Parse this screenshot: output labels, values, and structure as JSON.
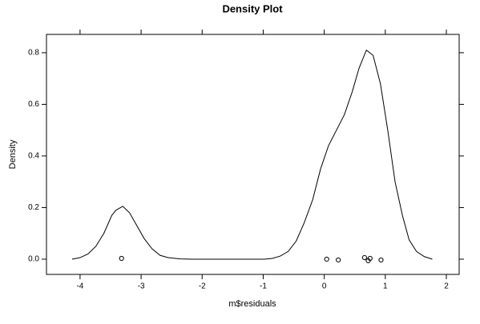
{
  "chart_data": {
    "type": "line",
    "title": "Density Plot",
    "xlabel": "m$residuals",
    "ylabel": "Density",
    "xlim": [
      -4.55,
      2.21
    ],
    "ylim": [
      -0.059,
      0.871
    ],
    "xticks": [
      -4,
      -3,
      -2,
      -1,
      0,
      1,
      2
    ],
    "yticks": [
      {
        "value": 0,
        "label": "0.0"
      },
      0.2,
      0.4,
      0.6,
      0.8
    ],
    "series": [
      {
        "type": "line",
        "color": "#000000",
        "x": [
          -4.13,
          -4.0,
          -3.87,
          -3.74,
          -3.61,
          -3.48,
          -3.41,
          -3.3,
          -3.19,
          -3.07,
          -2.95,
          -2.82,
          -2.69,
          -2.56,
          -2.36,
          -2.16,
          -0.98,
          -0.85,
          -0.72,
          -0.59,
          -0.46,
          -0.33,
          -0.19,
          -0.06,
          0.07,
          0.2,
          0.33,
          0.46,
          0.57,
          0.69,
          0.8,
          0.92,
          1.04,
          1.16,
          1.28,
          1.39,
          1.51,
          1.64,
          1.77
        ],
        "values": [
          0.0,
          0.006,
          0.02,
          0.05,
          0.1,
          0.17,
          0.19,
          0.205,
          0.18,
          0.13,
          0.08,
          0.04,
          0.015,
          0.006,
          0.001,
          0.0,
          0.0,
          0.003,
          0.012,
          0.03,
          0.07,
          0.14,
          0.23,
          0.35,
          0.44,
          0.5,
          0.56,
          0.65,
          0.74,
          0.81,
          0.79,
          0.68,
          0.5,
          0.3,
          0.17,
          0.075,
          0.03,
          0.01,
          0.0
        ]
      },
      {
        "type": "scatter",
        "color": "#000000",
        "x": [
          -3.32,
          0.04,
          0.23,
          0.66,
          0.72,
          0.75,
          0.93
        ],
        "values": [
          0.003,
          0.0,
          -0.003,
          0.006,
          -0.006,
          0.003,
          -0.003
        ]
      }
    ]
  }
}
